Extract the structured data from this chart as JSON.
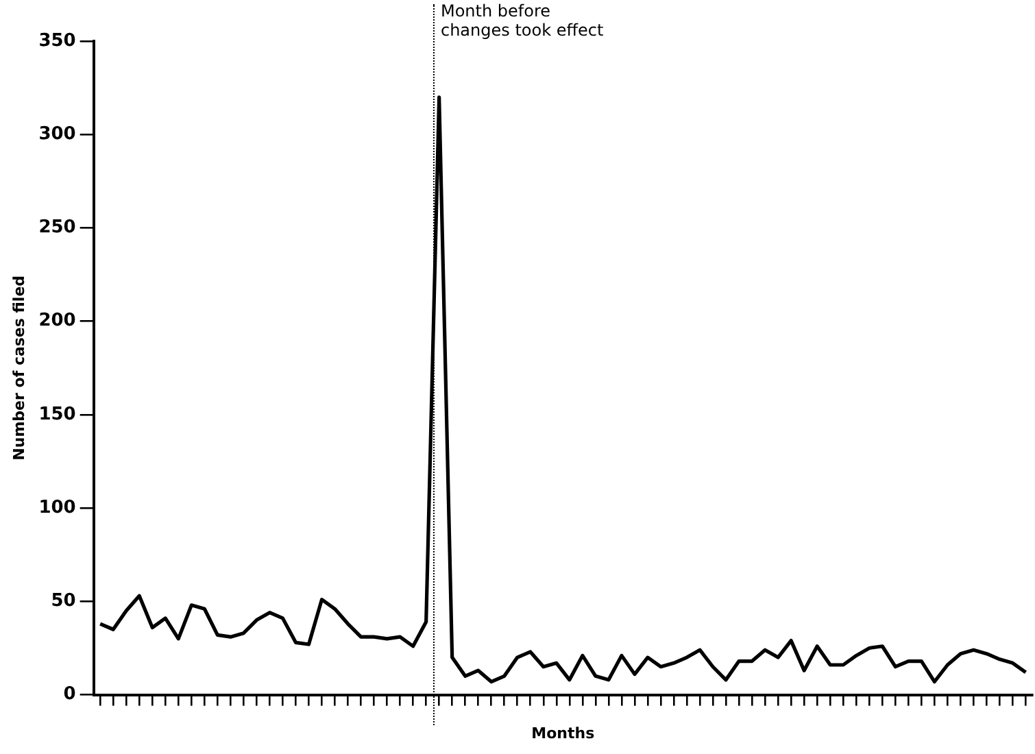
{
  "chart_data": {
    "type": "line",
    "xlabel": "Months",
    "ylabel": "Number of cases filed",
    "categories": [
      null,
      null,
      null,
      null,
      null,
      null,
      null,
      null,
      null,
      null,
      null,
      null,
      null,
      null,
      null,
      null,
      null,
      null,
      null,
      null,
      null,
      null,
      null,
      null,
      null,
      null,
      null,
      null,
      null,
      null,
      null,
      null,
      null,
      null,
      null,
      null,
      null,
      null,
      null,
      null,
      null,
      null,
      null,
      null,
      null,
      null,
      null,
      null,
      null,
      null,
      null,
      null,
      null,
      null,
      null,
      null,
      null,
      null,
      null,
      null,
      null,
      null,
      null,
      null,
      null,
      null,
      null,
      null,
      null,
      null,
      null,
      null
    ],
    "series": [
      {
        "color": "#000000",
        "values": [
          38,
          35,
          45,
          53,
          36,
          41,
          30,
          48,
          46,
          32,
          31,
          33,
          40,
          44,
          41,
          28,
          27,
          51,
          46,
          38,
          31,
          31,
          30,
          31,
          26,
          39,
          320,
          20,
          10,
          13,
          7,
          10,
          20,
          23,
          15,
          17,
          8,
          21,
          10,
          8,
          21,
          11,
          20,
          15,
          17,
          20,
          24,
          15,
          8,
          18,
          18,
          24,
          20,
          29,
          13,
          26,
          16,
          16,
          21,
          25,
          26,
          15,
          18,
          18,
          7,
          16,
          22,
          24,
          22,
          19,
          17,
          12
        ]
      }
    ],
    "ylim": [
      0,
      350
    ],
    "yticks": [
      0,
      50,
      100,
      150,
      200,
      250,
      300,
      350
    ],
    "tick_labels": "y",
    "legend": false,
    "marker": "none",
    "line_style": "solid",
    "annotations": [
      "Month before changes took effect"
    ]
  }
}
